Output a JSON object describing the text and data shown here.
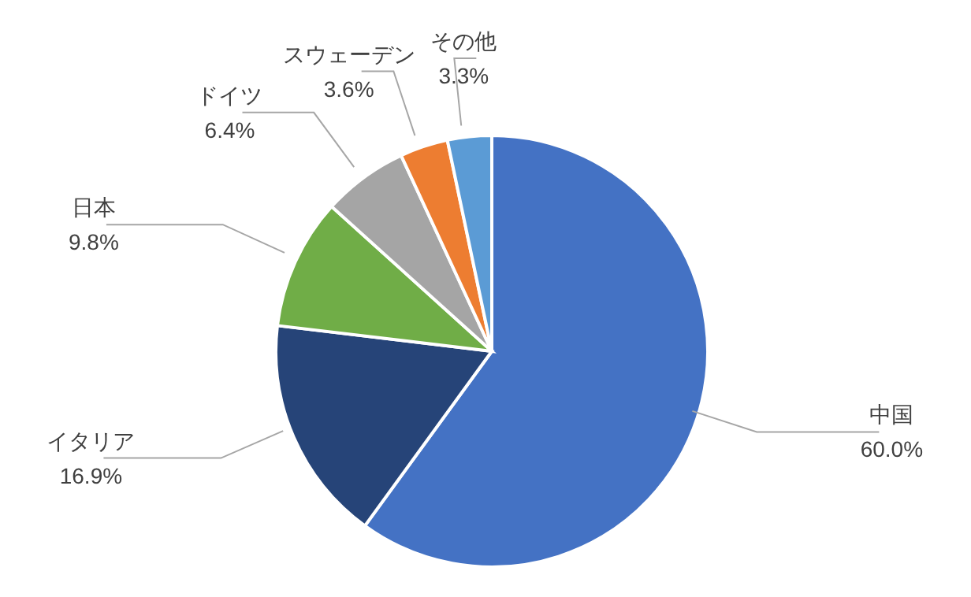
{
  "chart_data": {
    "type": "pie",
    "categories": [
      "中国",
      "イタリア",
      "日本",
      "ドイツ",
      "スウェーデン",
      "その他"
    ],
    "values": [
      60.0,
      16.9,
      9.8,
      6.4,
      3.6,
      3.3
    ],
    "value_labels": [
      "60.0%",
      "16.9%",
      "9.8%",
      "6.4%",
      "3.6%",
      "3.3%"
    ],
    "colors": [
      "#4472c4",
      "#264478",
      "#70ad47",
      "#a5a5a5",
      "#ed7d31",
      "#5b9bd5"
    ],
    "legend": false
  }
}
